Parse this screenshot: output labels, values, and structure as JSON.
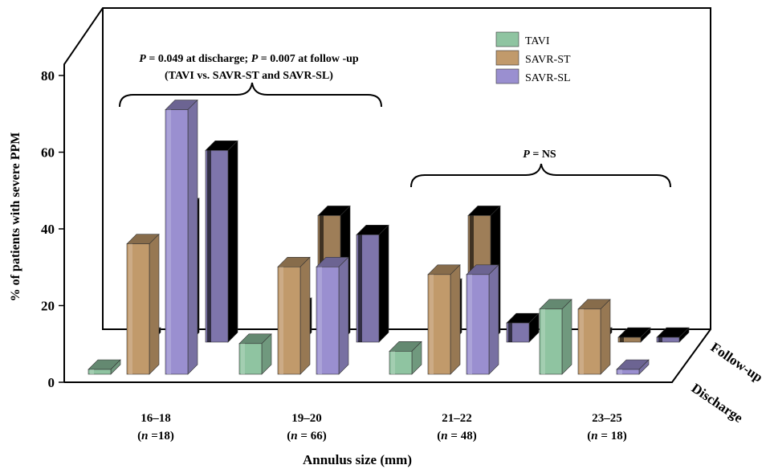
{
  "chart_data": {
    "type": "bar",
    "style": "3d-grouped",
    "ylabel": "% of patients with severe PPM",
    "xlabel": "Annulus size (mm)",
    "ylim": [
      0,
      80
    ],
    "yticks": [
      "0",
      "20",
      "40",
      "60",
      "80"
    ],
    "depth_labels": [
      "Follow-up",
      "Discharge"
    ],
    "groups": [
      {
        "label": "16–18",
        "n_prefix": "(",
        "n_var": "n",
        "n_value": " =18)"
      },
      {
        "label": "19–20",
        "n_prefix": "(",
        "n_var": "n",
        "n_value": " = 66)"
      },
      {
        "label": "21–22",
        "n_prefix": "(",
        "n_var": "n",
        "n_value": " = 48)"
      },
      {
        "label": "23–25",
        "n_prefix": "(",
        "n_var": "n",
        "n_value": " = 18)"
      }
    ],
    "series": [
      {
        "name": "TAVI",
        "color": "#8fc4a1",
        "discharge": [
          0,
          8,
          6,
          17
        ],
        "follow_up": [
          0,
          9,
          14,
          0
        ]
      },
      {
        "name": "SAVR-ST",
        "color": "#c19a6b",
        "discharge": [
          34,
          28,
          26,
          17
        ],
        "follow_up": [
          35,
          33,
          33,
          0
        ]
      },
      {
        "name": "SAVR-SL",
        "color": "#9a8fd0",
        "discharge": [
          69,
          28,
          26,
          0
        ],
        "follow_up": [
          50,
          28,
          5,
          0
        ]
      }
    ],
    "annotations": {
      "a1_line1_p": "P",
      "a1_line1_text": " = 0.049 at discharge; ",
      "a1_line1_p2": "P",
      "a1_line1_text2": " = 0.007 at follow -up",
      "a1_line2": "(TAVI vs. SAVR-ST and SAVR-SL)",
      "a2_p": "P",
      "a2_text": " = NS"
    },
    "legend_position": "top-right",
    "grid": false
  }
}
